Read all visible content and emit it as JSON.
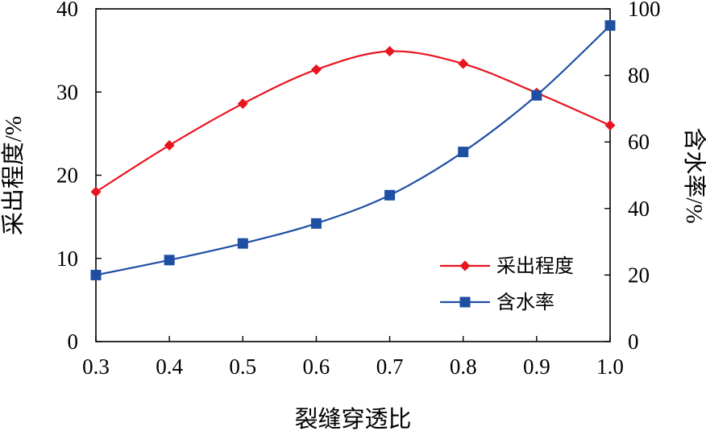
{
  "chart_data": {
    "type": "line",
    "title": "",
    "xlabel": "裂缝穿透比",
    "ylabel": "采出程度/%",
    "ylabel_right": "含水率/%",
    "x": [
      0.3,
      0.4,
      0.5,
      0.6,
      0.7,
      0.8,
      0.9,
      1.0
    ],
    "x_ticks": [
      "0.3",
      "0.4",
      "0.5",
      "0.6",
      "0.7",
      "0.8",
      "0.9",
      "1.0"
    ],
    "xlim": [
      0.3,
      1.0
    ],
    "ylim": [
      0,
      40
    ],
    "ylim_right": [
      0,
      100
    ],
    "y_ticks_left": [
      "0",
      "10",
      "20",
      "30",
      "40"
    ],
    "y_ticks_right": [
      "0",
      "20",
      "40",
      "60",
      "80",
      "100"
    ],
    "grid": false,
    "legend_position": "bottom-right",
    "series": [
      {
        "name": "采出程度",
        "axis": "left",
        "color": "#e8141e",
        "marker": "diamond",
        "values": [
          18.0,
          23.6,
          28.6,
          32.7,
          34.9,
          33.4,
          29.9,
          26.0
        ]
      },
      {
        "name": "含水率",
        "axis": "right",
        "color": "#1f4fa3",
        "marker": "square",
        "values": [
          20.0,
          24.5,
          29.5,
          35.5,
          44.0,
          57.0,
          74.0,
          95.0
        ]
      }
    ]
  }
}
